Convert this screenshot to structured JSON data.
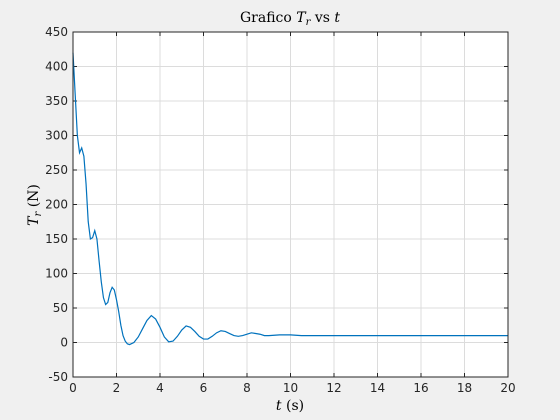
{
  "chart_data": {
    "type": "line",
    "title_prefix": "Grafico ",
    "title_var": "T",
    "title_sub": "r",
    "title_mid": " vs ",
    "title_var2": "t",
    "xlabel_var": "t",
    "xlabel_unit": " (s)",
    "ylabel_var": "T",
    "ylabel_sub": "r",
    "ylabel_unit": " (N)",
    "xlim": [
      0,
      20
    ],
    "ylim": [
      -50,
      450
    ],
    "xticks": [
      0,
      2,
      4,
      6,
      8,
      10,
      12,
      14,
      16,
      18,
      20
    ],
    "yticks": [
      -50,
      0,
      50,
      100,
      150,
      200,
      250,
      300,
      350,
      400,
      450
    ],
    "grid": true,
    "line_color": "#0072bd",
    "series": [
      {
        "x": [
          0,
          0.1,
          0.2,
          0.3,
          0.4,
          0.5,
          0.6,
          0.7,
          0.8,
          0.9,
          1.0,
          1.1,
          1.2,
          1.3,
          1.4,
          1.5,
          1.6,
          1.7,
          1.8,
          1.9,
          2.0,
          2.1,
          2.2,
          2.3,
          2.4,
          2.5,
          2.6,
          2.8,
          3.0,
          3.2,
          3.4,
          3.6,
          3.8,
          4.0,
          4.2,
          4.4,
          4.6,
          4.8,
          5.0,
          5.2,
          5.4,
          5.6,
          5.8,
          6.0,
          6.2,
          6.4,
          6.6,
          6.8,
          7.0,
          7.2,
          7.4,
          7.6,
          7.8,
          8.0,
          8.2,
          8.4,
          8.6,
          8.8,
          9.0,
          9.5,
          10.0,
          10.5,
          11.0,
          11.5,
          12.0,
          13.0,
          14.0,
          15.0,
          16.0,
          17.0,
          18.0,
          19.0,
          20.0
        ],
        "y": [
          420,
          360,
          300,
          275,
          282,
          270,
          230,
          175,
          150,
          152,
          162,
          150,
          118,
          88,
          65,
          55,
          58,
          72,
          80,
          76,
          62,
          45,
          25,
          10,
          2,
          -2,
          -3,
          0,
          8,
          20,
          32,
          39,
          34,
          22,
          8,
          1,
          2,
          9,
          18,
          24,
          22,
          16,
          9,
          5,
          5,
          9,
          14,
          17,
          16,
          13,
          10,
          9,
          10,
          12,
          14,
          13,
          12,
          10,
          10,
          11,
          11,
          10,
          10,
          10,
          10,
          10,
          10,
          10,
          10,
          10,
          10,
          10,
          10
        ]
      }
    ]
  }
}
